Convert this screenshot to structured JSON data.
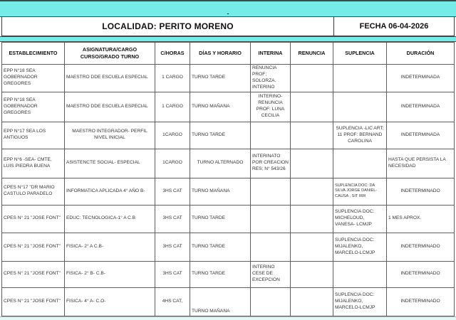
{
  "theme": {
    "teal": "#75ECE8",
    "grid_border": "#5f5f5f",
    "text": "#333333"
  },
  "header": {
    "dash": "-",
    "localidad": "LOCALIDAD: PERITO MORENO",
    "fecha": "FECHA 06-04-2026"
  },
  "columns": [
    "ESTABLECIMIENTO",
    "ASIGNATURA/CARGO CURSO/GRADO TURNO",
    "C/HORAS",
    "DÍAS Y HORARIO",
    "INTERINA",
    "RENUNCIA",
    "SUPLENCIA",
    "DURACIÓN"
  ],
  "rows": [
    {
      "establecimiento": "EPP N°18 SEA GOBERNADOR GREGORES",
      "asignatura": "MAESTRO DDE ESCUELA ESPECIAL",
      "horas": "1 CARGO",
      "dias": "TURNO TARDE",
      "interina": "RENUNCIA PROF; SOLORZA. INTERINO",
      "renuncia": "",
      "suplencia": "",
      "duracion": "INDETERMINADA"
    },
    {
      "establecimiento": "EPP N°18 SEA GOBERNADOR GREGORES",
      "asignatura": "MAESTRO DDE ESCUELA ESPECIAL",
      "horas": "1 CARGO",
      "dias": "TURNO MAÑANA",
      "interina": "INTERINO- RENUNCIA PROF: LUNA CECILIA",
      "renuncia": "",
      "suplencia": "",
      "duracion": "INDETERMINADA"
    },
    {
      "establecimiento": "EPP N°17 SEA LOS ANTIGUOS",
      "asignatura": "MAESTRO INTEGRADOR- PERFIL NIVEL INICIAL",
      "horas": "1CARGO",
      "dias": "TURNO TARDE",
      "interina": "",
      "renuncia": "",
      "suplencia": "SUPLENCIA -LIC ART; 11 PROF: BERNAND CAROLINA",
      "duracion": "INDETERMINADA"
    },
    {
      "establecimiento": "EPP N°6 -SEA- CMTE, LUIS PIEDRA BUENA",
      "asignatura": "ASISTENCTE SOCIAL- ESPECIAL",
      "horas": "1CARGO",
      "dias": "TURNO ALTERNADO",
      "interina": "INTERINATO POR CREACION RES; N° 543/26",
      "renuncia": "",
      "suplencia": "",
      "duracion": "HASTA QUE PERSISTA LA NECESIDAD"
    },
    {
      "establecimiento": "CPES N°17 \"DR MARIO CASTULO PARADELO",
      "asignatura": "INFORMATICA APLICADA 4° AÑO B-",
      "horas": "3HS CAT",
      "dias": "TURNO MAÑANA",
      "interina": "",
      "renuncia": "",
      "suplencia": "SUPLENCIA DOC: DA SILVA JORGE DANIEL-CAUSA , SIT IRR",
      "duracion": "INDETERMINADO"
    },
    {
      "establecimiento": "CPES N° 21 \"JOSE FONT\"",
      "asignatura": "EDUC: TECNOLOGICA-1° A C.B",
      "horas": "3HS CAT",
      "dias": "TURNO TARDE",
      "interina": "",
      "renuncia": "",
      "suplencia": "SUPLENCIA DOC: MICHELOUD, VANESA- LCMJP",
      "duracion": "1 MES APROX."
    },
    {
      "establecimiento": "CPES N° 21 \"JOSE FONT\"",
      "asignatura": "FISICA- 2° A C.B-",
      "horas": "3HS CAT",
      "dias": "TURNO TARDE",
      "interina": "",
      "renuncia": "",
      "suplencia": "SUPLENCIA DOC: MIJALENKO, MARCELO-LCMJP",
      "duracion": "INDETERMINADO"
    },
    {
      "establecimiento": "CPES N° 21 \"JOSE FONT\"",
      "asignatura": "FISICA- 2° B- C.B-",
      "horas": "3HS CAT",
      "dias": "TURNO TARDE",
      "interina": "INTERINO CESE DE EXCEPCION",
      "renuncia": "",
      "suplencia": "",
      "duracion": "INDETERMINADO"
    },
    {
      "establecimiento": "CPES N° 21 \"JOSE FONT\"",
      "asignatura": "FISICA- 4° A- C.O-",
      "horas": "4HS CAT,",
      "dias": "TURNO MAÑANA",
      "interina": "",
      "renuncia": "",
      "suplencia": "SUPLENCIA DOC: MIJALENKO, MARCELO-LCMJP",
      "duracion": "INDETERMINADO"
    }
  ]
}
